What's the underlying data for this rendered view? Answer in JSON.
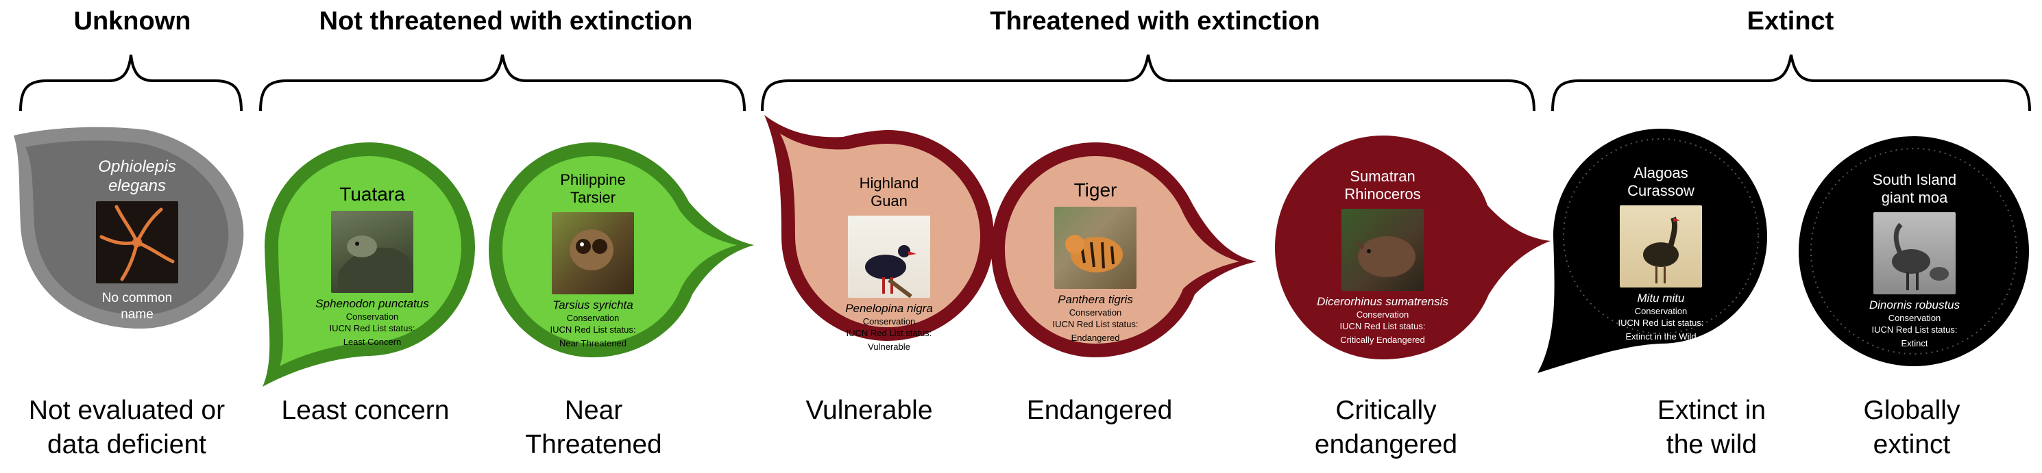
{
  "groups": [
    {
      "title": "Unknown"
    },
    {
      "title": "Not threatened with extinction"
    },
    {
      "title": "Threatened with extinction"
    },
    {
      "title": "Extinct"
    }
  ],
  "badges": [
    {
      "common": "Ophiolepis elegans",
      "common_line1": "Ophiolepis",
      "common_line2": "elegans",
      "note1": "No common",
      "note2": "name",
      "fill": "#6e6e6e",
      "ring": "#8a8a8a"
    },
    {
      "common": "Tuatara",
      "scientific": "Sphenodon punctatus",
      "label_conservation": "Conservation",
      "label_iucn": "IUCN Red List status:",
      "status": "Least Concern",
      "fill": "#6fcf3f",
      "ring": "#3e8a1f"
    },
    {
      "common_line1": "Philippine",
      "common_line2": "Tarsier",
      "scientific": "Tarsius syrichta",
      "label_conservation": "Conservation",
      "label_iucn": "IUCN Red List status:",
      "status": "Near Threatened",
      "fill": "#6fcf3f",
      "ring": "#3e8a1f"
    },
    {
      "common_line1": "Highland",
      "common_line2": "Guan",
      "scientific": "Penelopina nigra",
      "label_conservation": "Conservation",
      "label_iucn": "IUCN Red List status:",
      "status": "Vulnerable",
      "fill": "#e2ab8f",
      "ring": "#7a0f1a"
    },
    {
      "common": "Tiger",
      "scientific": "Panthera tigris",
      "label_conservation": "Conservation",
      "label_iucn": "IUCN Red List status:",
      "status": "Endangered",
      "fill": "#e2ab8f",
      "ring": "#7a0f1a"
    },
    {
      "common_line1": "Sumatran",
      "common_line2": "Rhinoceros",
      "scientific": "Dicerorhinus sumatrensis",
      "label_conservation": "Conservation",
      "label_iucn": "IUCN Red List status:",
      "status": "Critically Endangered",
      "fill": "#7a0f1a",
      "ring": "#7a0f1a"
    },
    {
      "common_line1": "Alagoas",
      "common_line2": "Curassow",
      "scientific": "Mitu mitu",
      "label_conservation": "Conservation",
      "label_iucn": "IUCN Red List status:",
      "status": "Extinct in the Wild",
      "fill": "#000000",
      "ring": "#000000"
    },
    {
      "common_line1": "South Island",
      "common_line2": "giant moa",
      "scientific": "Dinornis robustus",
      "label_conservation": "Conservation",
      "label_iucn": "IUCN Red List status:",
      "status": "Extinct",
      "fill": "#000000",
      "ring": "#000000"
    }
  ],
  "captions": [
    {
      "line1": "Not evaluated or",
      "line2": "data deficient"
    },
    {
      "line1": "Least concern",
      "line2": ""
    },
    {
      "line1": "Near",
      "line2": "Threatened"
    },
    {
      "line1": "Vulnerable",
      "line2": ""
    },
    {
      "line1": "Endangered",
      "line2": ""
    },
    {
      "line1": "Critically",
      "line2": "endangered"
    },
    {
      "line1": "Extinct in",
      "line2": "the wild"
    },
    {
      "line1": "Globally",
      "line2": "extinct"
    }
  ],
  "photos": [
    "starfish-photo",
    "tuatara-photo",
    "tarsier-photo",
    "guan-photo",
    "tiger-photo",
    "rhino-photo",
    "curassow-photo",
    "moa-photo"
  ],
  "colors": {
    "gray": "#6e6e6e",
    "green": "#6fcf3f",
    "green_dark": "#3e8a1f",
    "salmon": "#e2ab8f",
    "maroon": "#7a0f1a",
    "black": "#000000"
  }
}
